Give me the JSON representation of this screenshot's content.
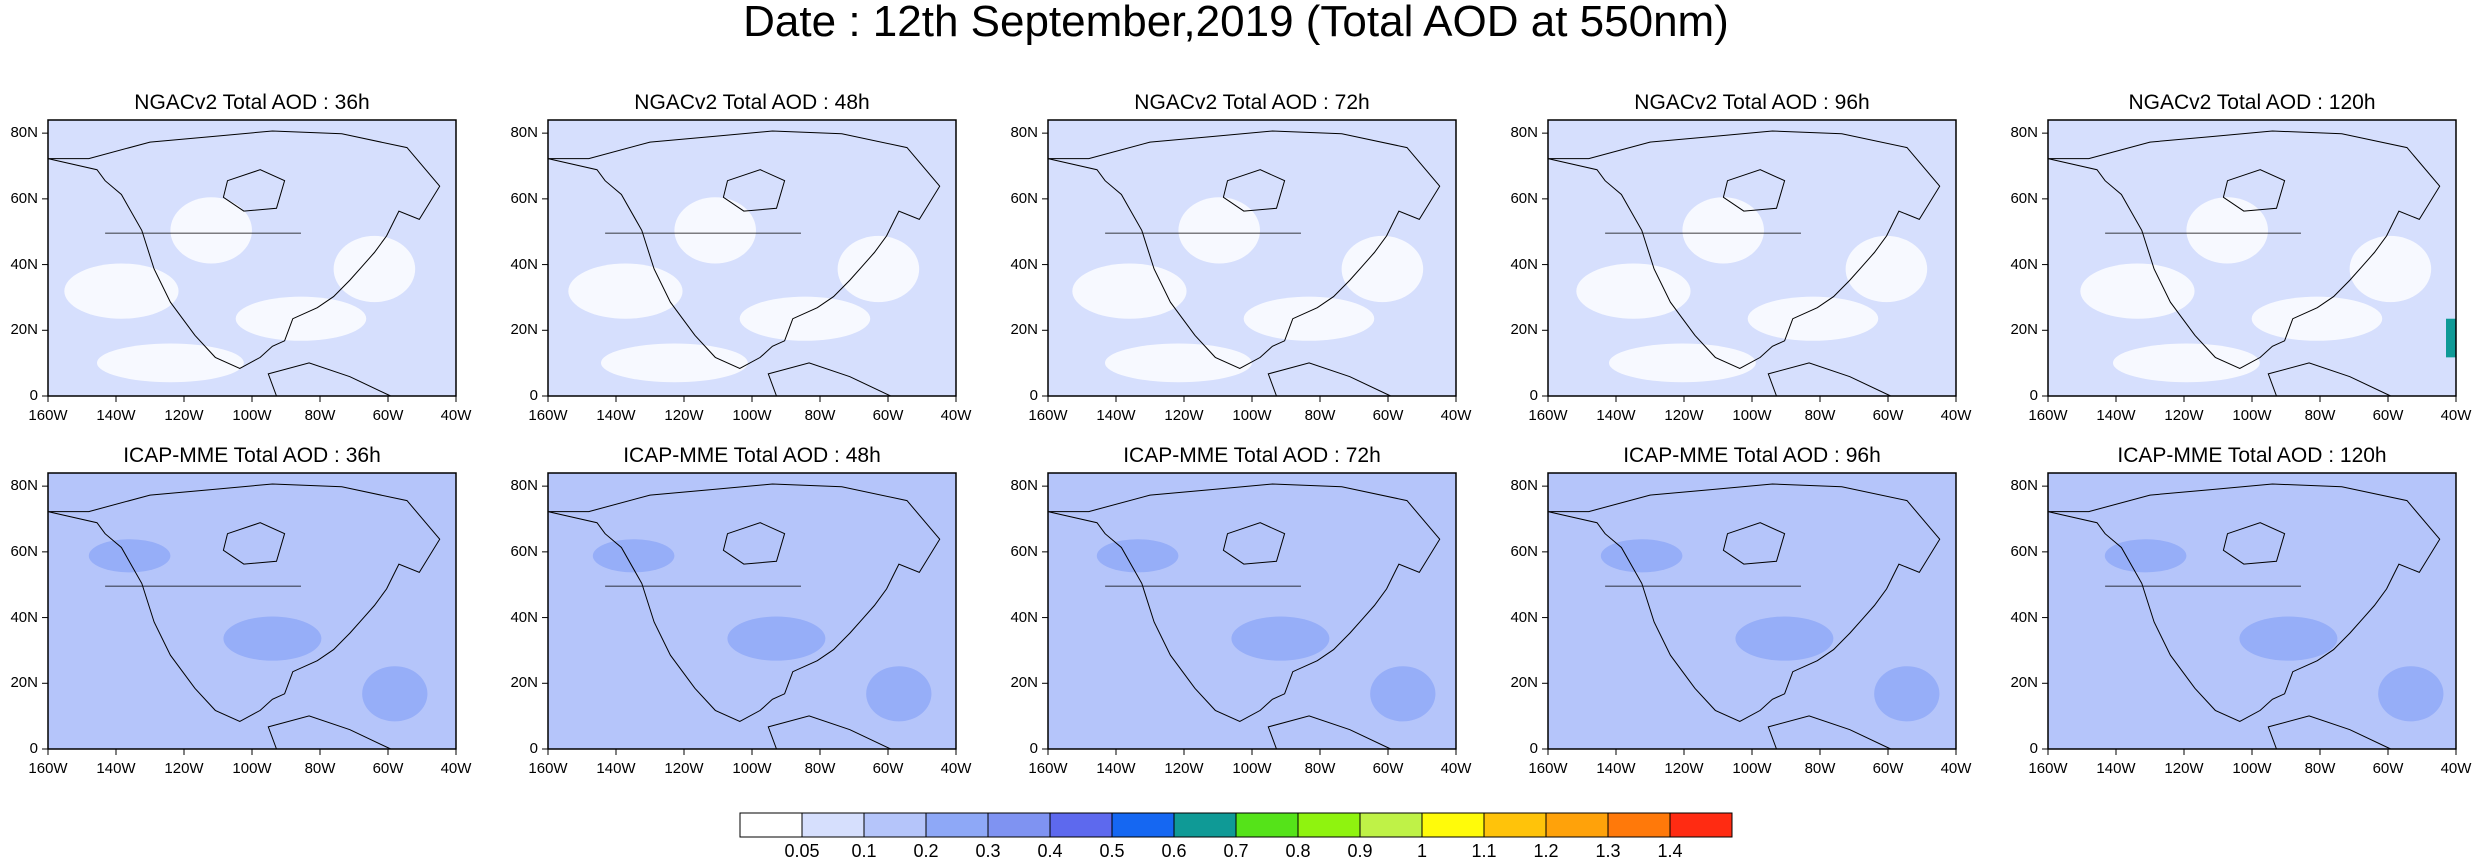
{
  "title": "Date : 12th September,2019 (Total AOD at 550nm)",
  "panels": [
    {
      "title": "NGACv2 Total AOD : 36h",
      "level": 1,
      "level_label": "0.05-0.1",
      "hotspot": null
    },
    {
      "title": "NGACv2 Total AOD : 48h",
      "level": 1,
      "level_label": "0.05-0.1",
      "hotspot": null
    },
    {
      "title": "NGACv2 Total AOD : 72h",
      "level": 1,
      "level_label": "0.05-0.1",
      "hotspot": null
    },
    {
      "title": "NGACv2 Total AOD : 96h",
      "level": 1,
      "level_label": "0.05-0.1",
      "hotspot": null
    },
    {
      "title": "NGACv2 Total AOD : 120h",
      "level": 1,
      "level_label": "0.05-0.1",
      "hotspot": "0.6-0.7"
    },
    {
      "title": "ICAP-MME Total AOD : 36h",
      "level": 2,
      "level_label": "0.1-0.2",
      "hotspot": null
    },
    {
      "title": "ICAP-MME Total AOD : 48h",
      "level": 2,
      "level_label": "0.1-0.2",
      "hotspot": null
    },
    {
      "title": "ICAP-MME Total AOD : 72h",
      "level": 2,
      "level_label": "0.1-0.2",
      "hotspot": null
    },
    {
      "title": "ICAP-MME Total AOD : 96h",
      "level": 2,
      "level_label": "0.1-0.2",
      "hotspot": null
    },
    {
      "title": "ICAP-MME Total AOD : 120h",
      "level": 2,
      "level_label": "0.1-0.2",
      "hotspot": null
    }
  ],
  "lat_labels": [
    "0",
    "20N",
    "40N",
    "60N",
    "80N"
  ],
  "lon_labels": [
    "160W",
    "140W",
    "120W",
    "100W",
    "80W",
    "60W",
    "40W"
  ],
  "colorbar": {
    "colors": [
      "#ffffff",
      "#d6dffd",
      "#b5c5fa",
      "#8ea8f7",
      "#7f93f2",
      "#5d69ee",
      "#1567f2",
      "#0f9a96",
      "#55e319",
      "#8ff30f",
      "#bff247",
      "#fffb0a",
      "#ffc30a",
      "#ffa20a",
      "#ff790a",
      "#ff2b12"
    ],
    "labels": [
      "0.05",
      "0.1",
      "0.2",
      "0.3",
      "0.4",
      "0.5",
      "0.6",
      "0.7",
      "0.8",
      "0.9",
      "1",
      "1.1",
      "1.2",
      "1.3",
      "1.4"
    ]
  }
}
